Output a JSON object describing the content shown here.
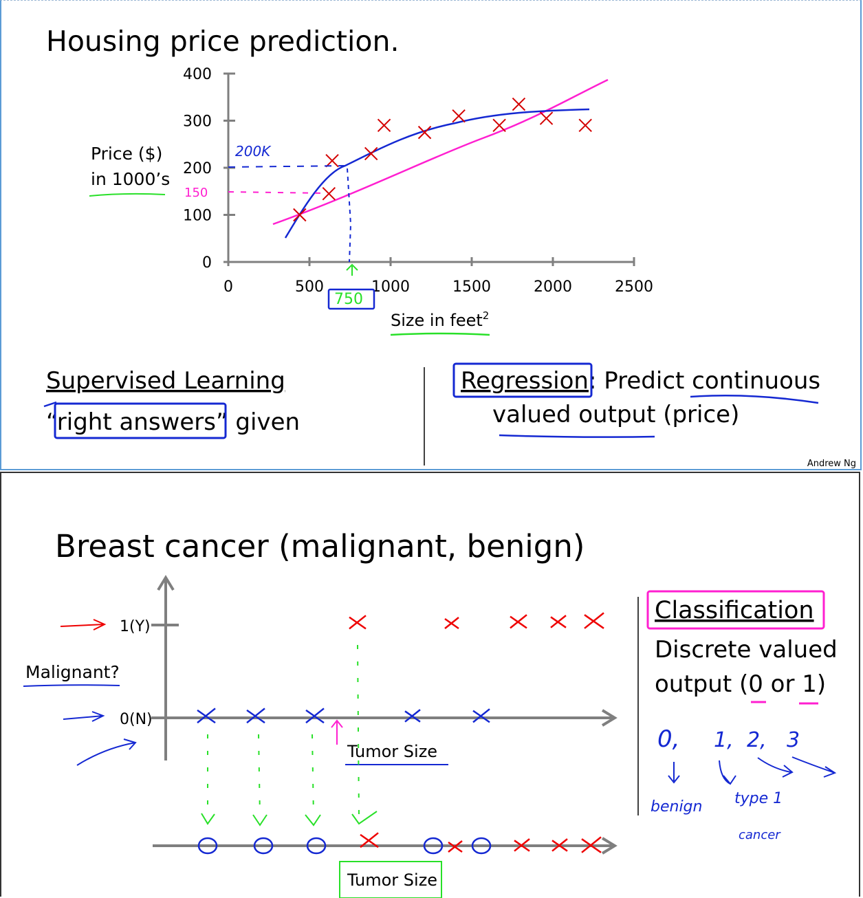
{
  "slide1": {
    "title": "Housing price prediction.",
    "y_label_line1": "Price ($)",
    "y_label_line2": "in 1000’s",
    "x_label": "Size in feet",
    "x_label_sup": "2",
    "left_heading": "Supervised Learning",
    "left_line_a": "“",
    "left_line_b": "right answers",
    "left_line_c": "”",
    "left_line_d": " given",
    "right_line1_a": "Regression",
    "right_line1_b": ": Predict continuous",
    "right_line2": "valued output (price)",
    "footer": "Andrew Ng",
    "annotations": {
      "a200": "200K",
      "a150": "150",
      "a750": "750"
    },
    "colors": {
      "data": "#d40000",
      "fit_curve": "#1428d2",
      "fit_line": "#ff1fd0",
      "highlight": "#28e028"
    }
  },
  "chart_data": {
    "type": "scatter",
    "title": "Housing price prediction.",
    "xlabel": "Size in feet²",
    "ylabel": "Price ($) in 1000’s",
    "xlim": [
      0,
      2500
    ],
    "ylim": [
      0,
      400
    ],
    "x_ticks": [
      "0",
      "500",
      "1000",
      "1500",
      "2000",
      "2500"
    ],
    "y_ticks": [
      "0",
      "100",
      "200",
      "300",
      "400"
    ],
    "x": [
      440,
      620,
      640,
      880,
      960,
      1210,
      1420,
      1670,
      1790,
      1960,
      2200
    ],
    "y": [
      100,
      145,
      215,
      230,
      290,
      275,
      310,
      290,
      335,
      305,
      290
    ]
  },
  "slide2": {
    "title": "Breast cancer (malignant, benign)",
    "y_tick_1": "1(Y)",
    "y_tick_0": "0(N)",
    "y_label": "Malignant?",
    "x_label": "Tumor Size",
    "x_label_2": "Tumor Size",
    "right_heading": "Classification",
    "right_line1": "Discrete valued",
    "right_line2": "output (0 or 1)",
    "notes": {
      "n0": "0,",
      "n1": "1,",
      "n2": "2,",
      "n3": "3",
      "benign": "benign",
      "type1": "type 1",
      "cancer": "cancer"
    }
  }
}
